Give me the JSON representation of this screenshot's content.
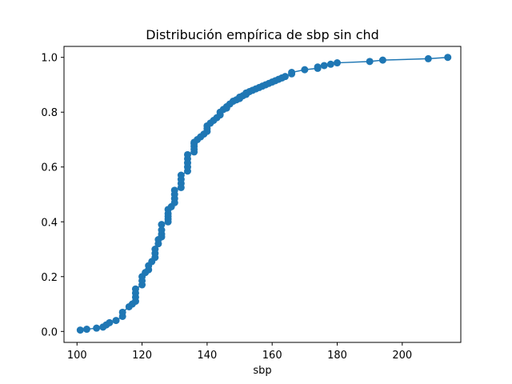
{
  "chart_data": {
    "type": "line",
    "title": "Distribución empírica de sbp sin chd",
    "xlabel": "sbp",
    "ylabel": "",
    "xlim": [
      96,
      218
    ],
    "ylim": [
      -0.04,
      1.04
    ],
    "xticks": [
      100,
      120,
      140,
      160,
      180,
      200
    ],
    "yticks": [
      0.0,
      0.2,
      0.4,
      0.6,
      0.8,
      1.0
    ],
    "xtick_labels": [
      "100",
      "120",
      "140",
      "160",
      "180",
      "200"
    ],
    "ytick_labels": [
      "0.0",
      "0.2",
      "0.4",
      "0.6",
      "0.8",
      "1.0"
    ],
    "grid": false,
    "series_color": "#1f77b4",
    "series": [
      {
        "markers": true,
        "x": [
          101,
          103,
          106,
          108,
          109,
          110,
          112,
          114,
          114,
          116,
          117,
          118,
          118,
          118,
          118,
          120,
          120,
          120,
          121,
          122,
          122,
          123,
          124,
          124,
          124,
          125,
          125,
          126,
          126,
          126,
          126,
          128,
          128,
          128,
          128,
          128,
          129,
          130,
          130,
          130,
          130,
          132,
          132,
          132,
          132,
          134,
          134,
          134,
          134,
          134,
          136,
          136,
          136,
          136,
          136,
          137,
          138,
          139,
          140,
          140,
          140,
          141,
          142,
          143,
          144,
          144,
          145,
          146,
          146,
          147,
          148,
          149,
          150,
          150,
          151,
          152,
          152,
          153,
          154,
          155,
          156,
          157,
          158,
          159,
          160,
          161,
          162,
          163,
          164,
          166,
          166,
          170,
          174,
          174,
          176,
          178,
          180,
          190,
          194,
          208,
          214
        ],
        "y": [
          0.005,
          0.008,
          0.012,
          0.016,
          0.024,
          0.032,
          0.04,
          0.055,
          0.07,
          0.09,
          0.1,
          0.11,
          0.125,
          0.14,
          0.155,
          0.17,
          0.185,
          0.2,
          0.215,
          0.225,
          0.24,
          0.255,
          0.27,
          0.285,
          0.3,
          0.32,
          0.335,
          0.345,
          0.355,
          0.37,
          0.39,
          0.4,
          0.41,
          0.42,
          0.43,
          0.445,
          0.455,
          0.47,
          0.485,
          0.5,
          0.515,
          0.525,
          0.54,
          0.555,
          0.57,
          0.585,
          0.6,
          0.615,
          0.63,
          0.645,
          0.655,
          0.665,
          0.675,
          0.685,
          0.69,
          0.7,
          0.71,
          0.72,
          0.73,
          0.74,
          0.75,
          0.76,
          0.77,
          0.78,
          0.79,
          0.8,
          0.81,
          0.815,
          0.82,
          0.83,
          0.84,
          0.845,
          0.85,
          0.855,
          0.86,
          0.865,
          0.87,
          0.875,
          0.88,
          0.885,
          0.89,
          0.895,
          0.9,
          0.905,
          0.91,
          0.915,
          0.92,
          0.925,
          0.93,
          0.94,
          0.945,
          0.955,
          0.96,
          0.965,
          0.97,
          0.975,
          0.98,
          0.985,
          0.99,
          0.995,
          1.0
        ]
      }
    ]
  }
}
